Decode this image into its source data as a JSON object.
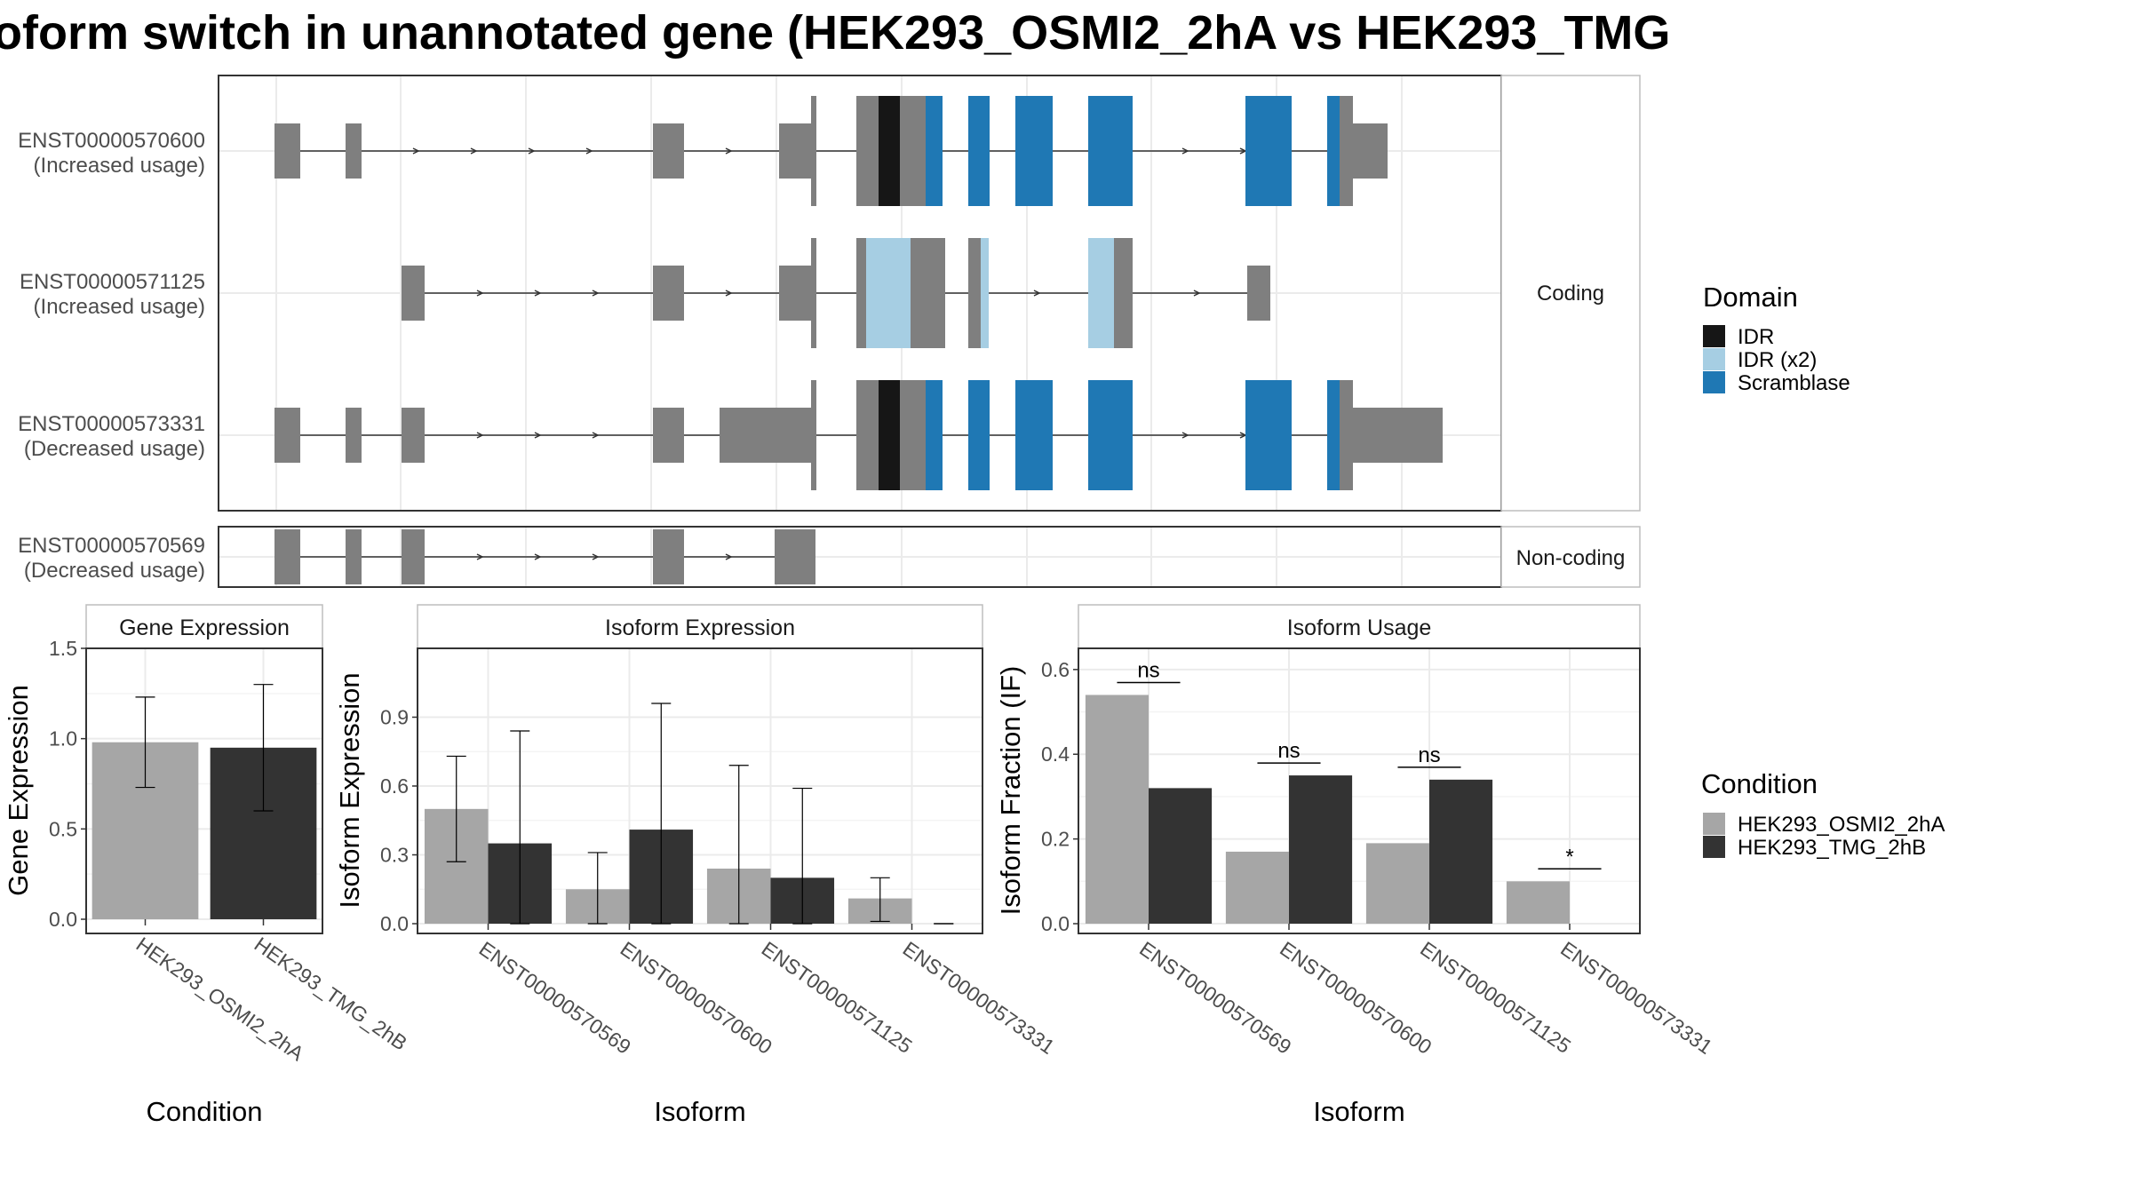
{
  "title": "oform switch in unannotated gene (HEK293_OSMI2_2hA vs HEK293_TMG",
  "colors": {
    "exon": "#7f7f7f",
    "idr": "#161616",
    "idr_x2": "#a6cee3",
    "scramblase": "#1f78b4",
    "cond_a": "#a6a6a6",
    "cond_b": "#333333",
    "grid": "#ebebeb",
    "frame": "#333333"
  },
  "chart_data": [
    {
      "type": "gene-structure",
      "strips": [
        "Coding",
        "Non-coding"
      ],
      "isoforms": [
        {
          "id": "ENST00000570600",
          "note": "(Increased usage)",
          "group": "Coding"
        },
        {
          "id": "ENST00000571125",
          "note": "(Increased usage)",
          "group": "Coding"
        },
        {
          "id": "ENST00000573331",
          "note": "(Decreased usage)",
          "group": "Coding"
        },
        {
          "id": "ENST00000570569",
          "note": "(Decreased usage)",
          "group": "Non-coding"
        }
      ],
      "legend": {
        "title": "Domain",
        "items": [
          {
            "label": "IDR",
            "color": "#161616"
          },
          {
            "label": "IDR (x2)",
            "color": "#a6cee3"
          },
          {
            "label": "Scramblase",
            "color": "#1f78b4"
          }
        ]
      }
    },
    {
      "type": "bar",
      "title": "Gene Expression",
      "xlabel": "Condition",
      "ylabel": "Gene Expression",
      "categories": [
        "HEK293_OSMI2_2hA",
        "HEK293_TMG_2hB"
      ],
      "values": [
        0.98,
        0.95
      ],
      "err_low": [
        0.73,
        0.6
      ],
      "err_high": [
        1.23,
        1.3
      ],
      "ylim": [
        0,
        1.5
      ],
      "yticks": [
        "0.0",
        "0.5",
        "1.0",
        "1.5"
      ]
    },
    {
      "type": "bar",
      "title": "Isoform Expression",
      "xlabel": "Isoform",
      "ylabel": "Isoform Expression",
      "categories": [
        "ENST00000570569",
        "ENST00000570600",
        "ENST00000571125",
        "ENST00000573331"
      ],
      "series": [
        {
          "name": "HEK293_OSMI2_2hA",
          "values": [
            0.5,
            0.15,
            0.24,
            0.11
          ],
          "err_low": [
            0.27,
            0.0,
            0.0,
            0.01
          ],
          "err_high": [
            0.73,
            0.31,
            0.69,
            0.2
          ]
        },
        {
          "name": "HEK293_TMG_2hB",
          "values": [
            0.35,
            0.41,
            0.2,
            0.0
          ],
          "err_low": [
            0.0,
            0.0,
            0.0,
            0.0
          ],
          "err_high": [
            0.84,
            0.96,
            0.59,
            0.0
          ]
        }
      ],
      "ylim": [
        0,
        1.2
      ],
      "yticks": [
        "0.0",
        "0.3",
        "0.6",
        "0.9"
      ]
    },
    {
      "type": "bar",
      "title": "Isoform Usage",
      "xlabel": "Isoform",
      "ylabel": "Isoform Fraction (IF)",
      "categories": [
        "ENST00000570569",
        "ENST00000570600",
        "ENST00000571125",
        "ENST00000573331"
      ],
      "series": [
        {
          "name": "HEK293_OSMI2_2hA",
          "values": [
            0.54,
            0.17,
            0.19,
            0.1
          ]
        },
        {
          "name": "HEK293_TMG_2hB",
          "values": [
            0.32,
            0.35,
            0.34,
            0.0
          ]
        }
      ],
      "significance": [
        "ns",
        "ns",
        "ns",
        "*"
      ],
      "ylim": [
        0,
        0.65
      ],
      "yticks": [
        "0.0",
        "0.2",
        "0.4",
        "0.6"
      ]
    }
  ],
  "condition_legend": {
    "title": "Condition",
    "items": [
      {
        "label": "HEK293_OSMI2_2hA",
        "color": "#a6a6a6"
      },
      {
        "label": "HEK293_TMG_2hB",
        "color": "#333333"
      }
    ]
  }
}
